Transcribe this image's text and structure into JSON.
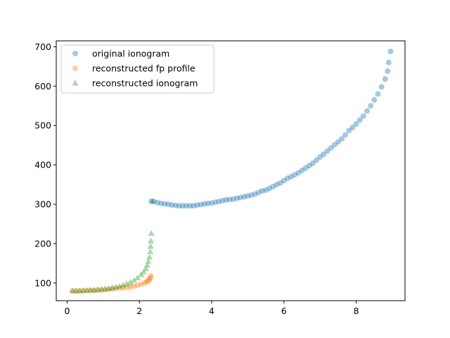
{
  "chart_data": {
    "type": "scatter",
    "title": "",
    "xlabel": "",
    "ylabel": "",
    "xlim": [
      -0.3,
      9.35
    ],
    "ylim": [
      55,
      715
    ],
    "xticks": [
      0,
      2,
      4,
      6,
      8
    ],
    "yticks": [
      100,
      200,
      300,
      400,
      500,
      600,
      700
    ],
    "grid": false,
    "legend_position": "upper-left",
    "series": [
      {
        "name": "original ionogram",
        "marker": "circle",
        "color": "#1f77b4",
        "alpha": 0.4,
        "points": [
          [
            2.33,
            308
          ],
          [
            2.4,
            307
          ],
          [
            2.5,
            304
          ],
          [
            2.6,
            302
          ],
          [
            2.7,
            301
          ],
          [
            2.8,
            300
          ],
          [
            2.9,
            298
          ],
          [
            3.0,
            297
          ],
          [
            3.1,
            296
          ],
          [
            3.2,
            296
          ],
          [
            3.3,
            296
          ],
          [
            3.4,
            296
          ],
          [
            3.5,
            296
          ],
          [
            3.6,
            298
          ],
          [
            3.7,
            299
          ],
          [
            3.8,
            301
          ],
          [
            3.9,
            302
          ],
          [
            4.0,
            303
          ],
          [
            4.1,
            305
          ],
          [
            4.2,
            307
          ],
          [
            4.3,
            309
          ],
          [
            4.4,
            311
          ],
          [
            4.5,
            312
          ],
          [
            4.6,
            313
          ],
          [
            4.7,
            315
          ],
          [
            4.8,
            317
          ],
          [
            4.9,
            319
          ],
          [
            5.0,
            321
          ],
          [
            5.1,
            323
          ],
          [
            5.2,
            326
          ],
          [
            5.3,
            330
          ],
          [
            5.4,
            334
          ],
          [
            5.5,
            336
          ],
          [
            5.6,
            340
          ],
          [
            5.7,
            345
          ],
          [
            5.8,
            350
          ],
          [
            5.9,
            354
          ],
          [
            6.0,
            360
          ],
          [
            6.1,
            366
          ],
          [
            6.2,
            370
          ],
          [
            6.3,
            375
          ],
          [
            6.4,
            380
          ],
          [
            6.5,
            386
          ],
          [
            6.6,
            392
          ],
          [
            6.7,
            398
          ],
          [
            6.8,
            404
          ],
          [
            6.9,
            412
          ],
          [
            7.0,
            420
          ],
          [
            7.1,
            427
          ],
          [
            7.2,
            435
          ],
          [
            7.3,
            443
          ],
          [
            7.4,
            451
          ],
          [
            7.5,
            458
          ],
          [
            7.6,
            466
          ],
          [
            7.7,
            476
          ],
          [
            7.8,
            487
          ],
          [
            7.9,
            495
          ],
          [
            8.0,
            504
          ],
          [
            8.1,
            514
          ],
          [
            8.2,
            524
          ],
          [
            8.3,
            537
          ],
          [
            8.4,
            550
          ],
          [
            8.5,
            565
          ],
          [
            8.6,
            580
          ],
          [
            8.7,
            598
          ],
          [
            8.8,
            618
          ],
          [
            8.87,
            638
          ],
          [
            8.9,
            660
          ],
          [
            8.95,
            688
          ]
        ]
      },
      {
        "name": "reconstructed fp profile",
        "marker": "circle",
        "color": "#ff7f0e",
        "alpha": 0.4,
        "points": [
          [
            0.15,
            80
          ],
          [
            0.25,
            80
          ],
          [
            0.35,
            80
          ],
          [
            0.45,
            80
          ],
          [
            0.55,
            81
          ],
          [
            0.65,
            81
          ],
          [
            0.75,
            81
          ],
          [
            0.85,
            82
          ],
          [
            0.95,
            82
          ],
          [
            1.05,
            83
          ],
          [
            1.15,
            84
          ],
          [
            1.25,
            85
          ],
          [
            1.35,
            86
          ],
          [
            1.45,
            87
          ],
          [
            1.55,
            88
          ],
          [
            1.65,
            89
          ],
          [
            1.75,
            90
          ],
          [
            1.85,
            92
          ],
          [
            1.95,
            94
          ],
          [
            2.05,
            97
          ],
          [
            2.15,
            100
          ],
          [
            2.2,
            103
          ],
          [
            2.25,
            106
          ],
          [
            2.28,
            109
          ],
          [
            2.3,
            113
          ],
          [
            2.32,
            118
          ]
        ]
      },
      {
        "name": "reconstructed ionogram",
        "marker": "triangle",
        "color": "#2ca02c",
        "alpha": 0.4,
        "points": [
          [
            0.15,
            80
          ],
          [
            0.25,
            80
          ],
          [
            0.35,
            80
          ],
          [
            0.45,
            81
          ],
          [
            0.55,
            81
          ],
          [
            0.65,
            82
          ],
          [
            0.75,
            82
          ],
          [
            0.85,
            83
          ],
          [
            0.95,
            84
          ],
          [
            1.05,
            85
          ],
          [
            1.15,
            86
          ],
          [
            1.25,
            88
          ],
          [
            1.35,
            90
          ],
          [
            1.45,
            92
          ],
          [
            1.55,
            95
          ],
          [
            1.65,
            98
          ],
          [
            1.75,
            102
          ],
          [
            1.85,
            107
          ],
          [
            1.95,
            113
          ],
          [
            2.05,
            121
          ],
          [
            2.12,
            128
          ],
          [
            2.18,
            136
          ],
          [
            2.22,
            145
          ],
          [
            2.25,
            155
          ],
          [
            2.28,
            166
          ],
          [
            2.3,
            180
          ],
          [
            2.31,
            193
          ],
          [
            2.32,
            207
          ],
          [
            2.33,
            226
          ],
          [
            2.36,
            307
          ]
        ]
      }
    ]
  }
}
